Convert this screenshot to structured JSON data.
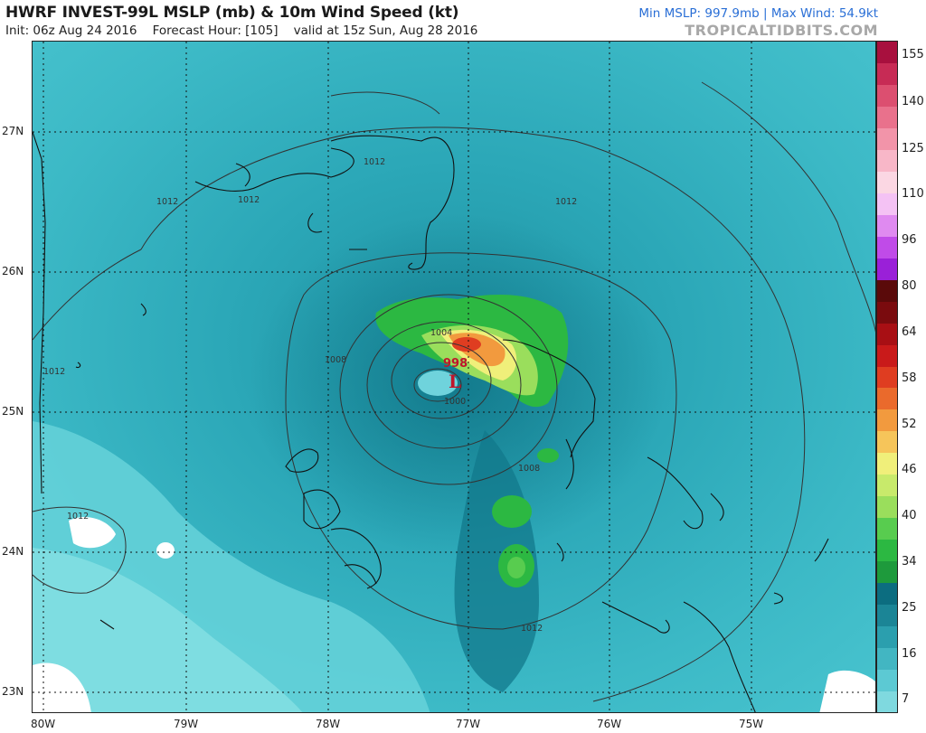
{
  "header": {
    "title": "HWRF INVEST-99L MSLP (mb) & 10m Wind Speed (kt)",
    "subtitle": "Init: 06z Aug 24 2016    Forecast Hour: [105]    valid at 15z Sun, Aug 28 2016",
    "stats": "Min MSLP: 997.9mb | Max Wind: 54.9kt",
    "brand": "TROPICALTIDBITS.COM"
  },
  "map": {
    "lat_labels": [
      "27N",
      "26N",
      "25N",
      "24N",
      "23N"
    ],
    "lon_labels": [
      "80W",
      "79W",
      "78W",
      "77W",
      "76W",
      "75W"
    ],
    "isobar_labels": [
      "1012",
      "1012",
      "1012",
      "1012",
      "1012",
      "1012",
      "1008",
      "1004",
      "1000",
      "1008",
      "1012"
    ],
    "low_center": {
      "pressure": "998",
      "symbol": "L"
    }
  },
  "colorbar": {
    "labels": [
      "155",
      "140",
      "125",
      "110",
      "96",
      "80",
      "64",
      "58",
      "52",
      "46",
      "40",
      "34",
      "25",
      "16",
      "7"
    ],
    "colors": [
      "#7fd9df",
      "#5cc9d3",
      "#42b6c2",
      "#2b9fae",
      "#1b8596",
      "#0c6d80",
      "#1e9a3c",
      "#2cb842",
      "#58cc4f",
      "#9ade5c",
      "#c8ea6b",
      "#f0ef7a",
      "#f6c55a",
      "#f29a3e",
      "#ea6a2c",
      "#df3d21",
      "#c91a1a",
      "#a80f14",
      "#7a0b0e",
      "#5a0a0a",
      "#9a20d8",
      "#c04be8",
      "#df8af0",
      "#f4c2f4",
      "#fbd7e3",
      "#f8b7c8",
      "#f294a9",
      "#e9718c",
      "#dc4f70",
      "#c72b55",
      "#a8103e"
    ]
  }
}
